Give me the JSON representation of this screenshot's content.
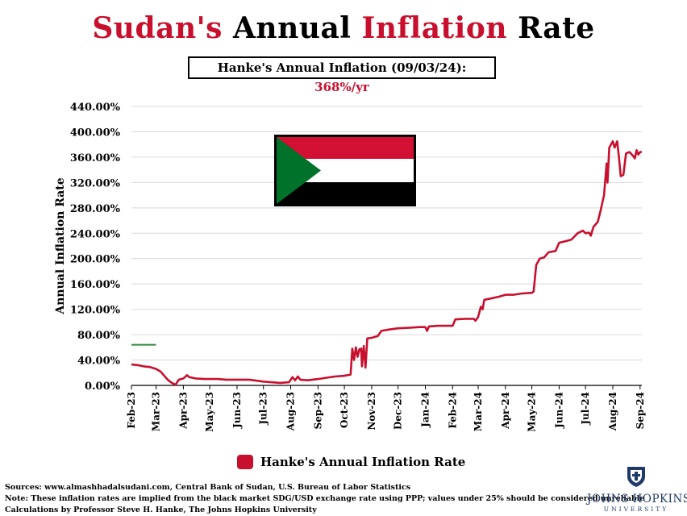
{
  "title": {
    "part1": "Sudan's",
    "part2": "Annual",
    "part3": "Inflation",
    "part4": "Rate"
  },
  "subtitle": {
    "label": "Hanke's Annual Inflation (09/03/24): ",
    "value": "368%/yr"
  },
  "colors": {
    "accent_red": "#c8102e",
    "threshold_green": "#2e8b3e",
    "grid": "#d9d9d9"
  },
  "legend": {
    "label": "Hanke's Annual Inflation Rate"
  },
  "footer": {
    "sources": "Sources: www.almashhadalsudani.com, Central Bank of Sudan, U.S. Bureau of Labor Statistics",
    "note": "Note: These inflation rates are implied from the black market SDG/USD exchange rate using PPP; values under 25% should be considered unreliable",
    "credit": "Calculations by Professor Steve H. Hanke, The Johns Hopkins University"
  },
  "logo": {
    "name": "JOHNS HOPKINS",
    "sub": "UNIVERSITY"
  },
  "chart_data": {
    "type": "line",
    "ylabel": "Annual Inflation Rate",
    "ylim": [
      0,
      440
    ],
    "yticks": [
      0,
      40,
      80,
      120,
      160,
      200,
      240,
      280,
      320,
      360,
      400,
      440
    ],
    "ytick_labels": [
      "0.00%",
      "40.00%",
      "80.00%",
      "120.00%",
      "160.00%",
      "200.00%",
      "240.00%",
      "280.00%",
      "320.00%",
      "360.00%",
      "400.00%",
      "440.00%"
    ],
    "xticks": [
      "2023-02-01",
      "2023-03-01",
      "2023-04-01",
      "2023-05-01",
      "2023-06-01",
      "2023-07-01",
      "2023-08-01",
      "2023-09-01",
      "2023-10-01",
      "2023-11-01",
      "2023-12-01",
      "2024-01-01",
      "2024-02-01",
      "2024-03-01",
      "2024-04-01",
      "2024-05-01",
      "2024-06-01",
      "2024-07-01",
      "2024-08-01",
      "2024-09-01"
    ],
    "xtick_labels": [
      "Feb-23",
      "Mar-23",
      "Apr-23",
      "May-23",
      "Jun-23",
      "Jul-23",
      "Aug-23",
      "Sep-23",
      "Oct-23",
      "Nov-23",
      "Dec-23",
      "Jan-24",
      "Feb-24",
      "Mar-24",
      "Apr-24",
      "May-24",
      "Jun-24",
      "Jul-24",
      "Aug-24",
      "Sep-24"
    ],
    "xlim": [
      "2023-02-01",
      "2024-09-03"
    ],
    "threshold": {
      "value": 64,
      "x_start": "2023-02-01",
      "x_end": "2023-03-01",
      "color": "#2e8b3e"
    },
    "grid": true,
    "legend_position": "bottom",
    "series": [
      {
        "name": "Hanke's Annual Inflation Rate",
        "color": "#c8102e",
        "points": [
          [
            "2023-02-01",
            33
          ],
          [
            "2023-02-08",
            32
          ],
          [
            "2023-02-15",
            30
          ],
          [
            "2023-02-22",
            29
          ],
          [
            "2023-03-01",
            26
          ],
          [
            "2023-03-06",
            22
          ],
          [
            "2023-03-11",
            14
          ],
          [
            "2023-03-15",
            8
          ],
          [
            "2023-03-19",
            4
          ],
          [
            "2023-03-23",
            1
          ],
          [
            "2023-03-27",
            9
          ],
          [
            "2023-04-01",
            11
          ],
          [
            "2023-04-05",
            16
          ],
          [
            "2023-04-08",
            13
          ],
          [
            "2023-04-15",
            11
          ],
          [
            "2023-04-25",
            10
          ],
          [
            "2023-05-10",
            10
          ],
          [
            "2023-05-20",
            9
          ],
          [
            "2023-06-01",
            9
          ],
          [
            "2023-06-15",
            9
          ],
          [
            "2023-07-01",
            6
          ],
          [
            "2023-07-10",
            5
          ],
          [
            "2023-07-20",
            4
          ],
          [
            "2023-07-30",
            5
          ],
          [
            "2023-08-03",
            13
          ],
          [
            "2023-08-06",
            8
          ],
          [
            "2023-08-09",
            14
          ],
          [
            "2023-08-12",
            9
          ],
          [
            "2023-08-20",
            8
          ],
          [
            "2023-09-01",
            10
          ],
          [
            "2023-09-10",
            12
          ],
          [
            "2023-09-20",
            14
          ],
          [
            "2023-09-30",
            15
          ],
          [
            "2023-10-08",
            17
          ],
          [
            "2023-10-10",
            58
          ],
          [
            "2023-10-12",
            40
          ],
          [
            "2023-10-14",
            60
          ],
          [
            "2023-10-16",
            45
          ],
          [
            "2023-10-18",
            57
          ],
          [
            "2023-10-20",
            58
          ],
          [
            "2023-10-21",
            30
          ],
          [
            "2023-10-23",
            62
          ],
          [
            "2023-10-25",
            28
          ],
          [
            "2023-10-27",
            74
          ],
          [
            "2023-11-01",
            75
          ],
          [
            "2023-11-08",
            78
          ],
          [
            "2023-11-12",
            86
          ],
          [
            "2023-11-20",
            88
          ],
          [
            "2023-12-01",
            90
          ],
          [
            "2023-12-15",
            91
          ],
          [
            "2023-12-25",
            92
          ],
          [
            "2024-01-01",
            92
          ],
          [
            "2024-01-03",
            86
          ],
          [
            "2024-01-05",
            93
          ],
          [
            "2024-01-15",
            94
          ],
          [
            "2024-01-25",
            94
          ],
          [
            "2024-02-01",
            94
          ],
          [
            "2024-02-04",
            104
          ],
          [
            "2024-02-15",
            105
          ],
          [
            "2024-02-25",
            105
          ],
          [
            "2024-02-27",
            102
          ],
          [
            "2024-03-01",
            108
          ],
          [
            "2024-03-04",
            124
          ],
          [
            "2024-03-06",
            120
          ],
          [
            "2024-03-08",
            135
          ],
          [
            "2024-03-15",
            137
          ],
          [
            "2024-03-25",
            140
          ],
          [
            "2024-04-01",
            143
          ],
          [
            "2024-04-10",
            143
          ],
          [
            "2024-04-20",
            145
          ],
          [
            "2024-05-01",
            146
          ],
          [
            "2024-05-03",
            148
          ],
          [
            "2024-05-06",
            190
          ],
          [
            "2024-05-10",
            200
          ],
          [
            "2024-05-15",
            202
          ],
          [
            "2024-05-20",
            210
          ],
          [
            "2024-05-28",
            212
          ],
          [
            "2024-06-01",
            225
          ],
          [
            "2024-06-10",
            228
          ],
          [
            "2024-06-15",
            230
          ],
          [
            "2024-06-22",
            240
          ],
          [
            "2024-06-28",
            244
          ],
          [
            "2024-07-01",
            240
          ],
          [
            "2024-07-05",
            241
          ],
          [
            "2024-07-07",
            236
          ],
          [
            "2024-07-10",
            250
          ],
          [
            "2024-07-15",
            258
          ],
          [
            "2024-07-18",
            275
          ],
          [
            "2024-07-22",
            300
          ],
          [
            "2024-07-25",
            350
          ],
          [
            "2024-07-26",
            320
          ],
          [
            "2024-07-28",
            375
          ],
          [
            "2024-08-01",
            385
          ],
          [
            "2024-08-03",
            375
          ],
          [
            "2024-08-06",
            385
          ],
          [
            "2024-08-08",
            360
          ],
          [
            "2024-08-10",
            330
          ],
          [
            "2024-08-13",
            332
          ],
          [
            "2024-08-16",
            366
          ],
          [
            "2024-08-20",
            368
          ],
          [
            "2024-08-24",
            362
          ],
          [
            "2024-08-26",
            358
          ],
          [
            "2024-08-28",
            371
          ],
          [
            "2024-08-30",
            364
          ],
          [
            "2024-09-01",
            368
          ],
          [
            "2024-09-03",
            368
          ]
        ]
      }
    ]
  }
}
